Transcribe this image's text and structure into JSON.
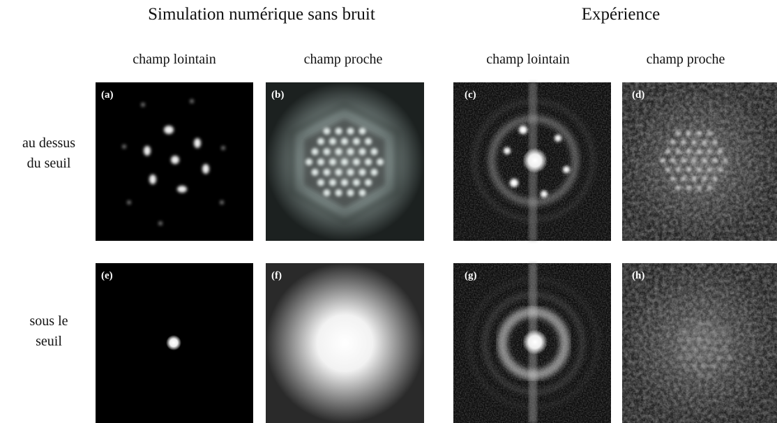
{
  "groups": [
    "Simulation numérique sans bruit",
    "Expérience"
  ],
  "columns": [
    "champ lointain",
    "champ proche",
    "champ lointain",
    "champ proche"
  ],
  "rows": [
    [
      "au dessus",
      "du seuil"
    ],
    [
      "sous le",
      "seuil"
    ]
  ],
  "panels": [
    "(a)",
    "(b)",
    "(c)",
    "(d)",
    "(e)",
    "(f)",
    "(g)",
    "(h)"
  ]
}
